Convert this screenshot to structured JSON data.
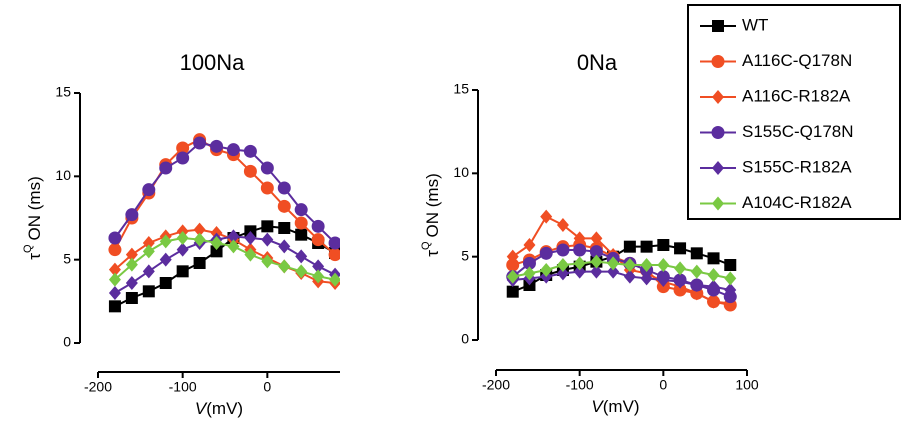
{
  "chart_data": [
    {
      "type": "line",
      "title": "100Na",
      "y_label_symbol": "τ",
      "y_label_sup": "Q",
      "y_label_text": "ON (ms)",
      "x_label_var": "V",
      "x_label_unit": "(mV)",
      "x": [
        -180,
        -160,
        -140,
        -120,
        -100,
        -80,
        -60,
        -40,
        -20,
        0,
        20,
        40,
        60,
        80
      ],
      "xlim": [
        -200,
        100
      ],
      "xticks": [
        -200,
        -100,
        0,
        100
      ],
      "ylim": [
        0,
        15
      ],
      "yticks": [
        0,
        5,
        10,
        15
      ],
      "series": [
        {
          "name": "WT",
          "color": "#000000",
          "marker": "square",
          "values": [
            2.2,
            2.7,
            3.1,
            3.6,
            4.3,
            4.8,
            5.5,
            6.3,
            6.7,
            7.0,
            6.9,
            6.5,
            6.0,
            5.4
          ]
        },
        {
          "name": "A116C-Q178N",
          "color": "#f04e23",
          "marker": "circle",
          "values": [
            5.6,
            7.5,
            9.0,
            10.7,
            11.7,
            12.2,
            11.6,
            11.3,
            10.3,
            9.3,
            8.2,
            7.2,
            6.2,
            5.3
          ]
        },
        {
          "name": "A116C-R182A",
          "color": "#f04e23",
          "marker": "diamond",
          "values": [
            4.4,
            5.3,
            6.0,
            6.4,
            6.7,
            6.8,
            6.6,
            6.2,
            5.6,
            5.1,
            4.6,
            4.2,
            3.7,
            3.6
          ]
        },
        {
          "name": "S155C-Q178N",
          "color": "#5b2d9e",
          "marker": "circle",
          "values": [
            6.3,
            7.7,
            9.2,
            10.5,
            11.1,
            12.0,
            11.8,
            11.6,
            11.5,
            10.5,
            9.3,
            8.0,
            7.0,
            6.0
          ]
        },
        {
          "name": "S155C-R182A",
          "color": "#5b2d9e",
          "marker": "diamond",
          "values": [
            3.0,
            3.6,
            4.3,
            5.0,
            5.6,
            6.0,
            6.2,
            6.4,
            6.3,
            6.2,
            5.8,
            5.2,
            4.6,
            4.1
          ]
        },
        {
          "name": "A104C-R182A",
          "color": "#7ac943",
          "marker": "diamond",
          "values": [
            3.8,
            4.7,
            5.5,
            6.1,
            6.3,
            6.2,
            6.0,
            5.8,
            5.3,
            4.9,
            4.6,
            4.3,
            4.0,
            3.8
          ]
        }
      ]
    },
    {
      "type": "line",
      "title": "0Na",
      "y_label_symbol": "τ",
      "y_label_sup": "Q",
      "y_label_text": "ON (ms)",
      "x_label_var": "V",
      "x_label_unit": "(mV)",
      "x": [
        -180,
        -160,
        -140,
        -120,
        -100,
        -80,
        -60,
        -40,
        -20,
        0,
        20,
        40,
        60,
        80
      ],
      "xlim": [
        -200,
        100
      ],
      "xticks": [
        -200,
        -100,
        0,
        100
      ],
      "ylim": [
        0,
        15
      ],
      "yticks": [
        0,
        5,
        10,
        15
      ],
      "series": [
        {
          "name": "WT",
          "color": "#000000",
          "marker": "square",
          "values": [
            2.9,
            3.3,
            3.9,
            4.2,
            4.4,
            4.7,
            5.0,
            5.6,
            5.6,
            5.7,
            5.5,
            5.2,
            4.9,
            4.5
          ]
        },
        {
          "name": "A116C-Q178N",
          "color": "#f04e23",
          "marker": "circle",
          "values": [
            4.5,
            4.8,
            5.3,
            5.6,
            5.7,
            5.5,
            5.0,
            4.6,
            4.2,
            3.2,
            3.0,
            2.8,
            2.3,
            2.1
          ]
        },
        {
          "name": "A116C-R182A",
          "color": "#f04e23",
          "marker": "diamond",
          "values": [
            5.0,
            5.7,
            7.4,
            6.9,
            6.1,
            6.1,
            5.1,
            4.2,
            4.0,
            3.5,
            3.2,
            2.8,
            2.3,
            2.2
          ]
        },
        {
          "name": "S155C-Q178N",
          "color": "#5b2d9e",
          "marker": "circle",
          "values": [
            3.8,
            4.6,
            5.2,
            5.4,
            5.4,
            5.3,
            4.9,
            4.6,
            4.2,
            3.8,
            3.6,
            3.3,
            3.0,
            2.6
          ]
        },
        {
          "name": "S155C-R182A",
          "color": "#5b2d9e",
          "marker": "diamond",
          "values": [
            3.6,
            3.7,
            3.8,
            4.0,
            4.1,
            4.1,
            4.1,
            3.8,
            3.7,
            3.6,
            3.5,
            3.3,
            3.2,
            3.0
          ]
        },
        {
          "name": "A104C-R182A",
          "color": "#7ac943",
          "marker": "diamond",
          "values": [
            3.8,
            4.0,
            4.2,
            4.5,
            4.6,
            4.7,
            4.6,
            4.5,
            4.5,
            4.5,
            4.3,
            4.1,
            3.9,
            3.7
          ]
        }
      ]
    }
  ]
}
